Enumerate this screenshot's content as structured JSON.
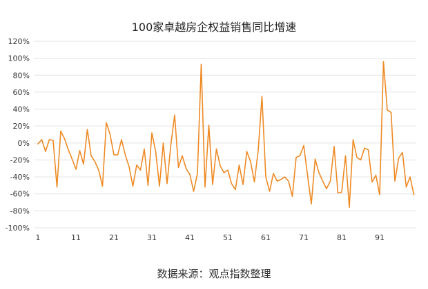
{
  "chart_data": {
    "type": "line",
    "title": "100家卓越房企权益销售同比增速",
    "xlim": [
      1,
      100
    ],
    "ylim": [
      -100,
      120
    ],
    "grid": "horizontal",
    "legend": "none",
    "xticks": [
      1,
      11,
      21,
      31,
      41,
      51,
      61,
      71,
      81,
      91
    ],
    "yticks": [
      120,
      100,
      80,
      60,
      40,
      20,
      0,
      -20,
      -40,
      -60,
      -80,
      -100
    ],
    "ytick_labels": [
      "120%",
      "100%",
      "80%",
      "60%",
      "40%",
      "20%",
      "0%",
      "-20%",
      "-40%",
      "-60%",
      "-80%",
      "-100%"
    ],
    "x": [
      1,
      2,
      3,
      4,
      5,
      6,
      7,
      8,
      9,
      10,
      11,
      12,
      13,
      14,
      15,
      16,
      17,
      18,
      19,
      20,
      21,
      22,
      23,
      24,
      25,
      26,
      27,
      28,
      29,
      30,
      31,
      32,
      33,
      34,
      35,
      36,
      37,
      38,
      39,
      40,
      41,
      42,
      43,
      44,
      45,
      46,
      47,
      48,
      49,
      50,
      51,
      52,
      53,
      54,
      55,
      56,
      57,
      58,
      59,
      60,
      61,
      62,
      63,
      64,
      65,
      66,
      67,
      68,
      69,
      70,
      71,
      72,
      73,
      74,
      75,
      76,
      77,
      78,
      79,
      80,
      81,
      82,
      83,
      84,
      85,
      86,
      87,
      88,
      89,
      90,
      91,
      92,
      93,
      94,
      95,
      96,
      97,
      98,
      99,
      100
    ],
    "series": [
      {
        "color": "#EE8A24",
        "values": [
          -1,
          4,
          -10,
          4,
          3,
          -52,
          14,
          5,
          -8,
          -19,
          -31,
          -9,
          -25,
          16,
          -15,
          -22,
          -32,
          -51,
          24,
          10,
          -14,
          -14,
          4,
          -14,
          -28,
          -51,
          -26,
          -32,
          -7,
          -50,
          12,
          -10,
          -51,
          0,
          -48,
          -2,
          33,
          -29,
          -15,
          -30,
          -37,
          -57,
          -36,
          93,
          -52,
          21,
          -49,
          -7,
          -27,
          -35,
          -32,
          -48,
          -55,
          -26,
          -49,
          -10,
          -22,
          -46,
          -9,
          55,
          -40,
          -57,
          -36,
          -45,
          -43,
          -40,
          -45,
          -63,
          -17,
          -15,
          -3,
          -38,
          -72,
          -19,
          -35,
          -45,
          -54,
          -45,
          -4,
          -59,
          -58,
          -15,
          -76,
          4,
          -17,
          -20,
          -6,
          -8,
          -46,
          -38,
          -61,
          96,
          39,
          36,
          -45,
          -18,
          -11,
          -52,
          -40,
          -61
        ]
      }
    ]
  },
  "source": "数据来源：观点指数整理"
}
